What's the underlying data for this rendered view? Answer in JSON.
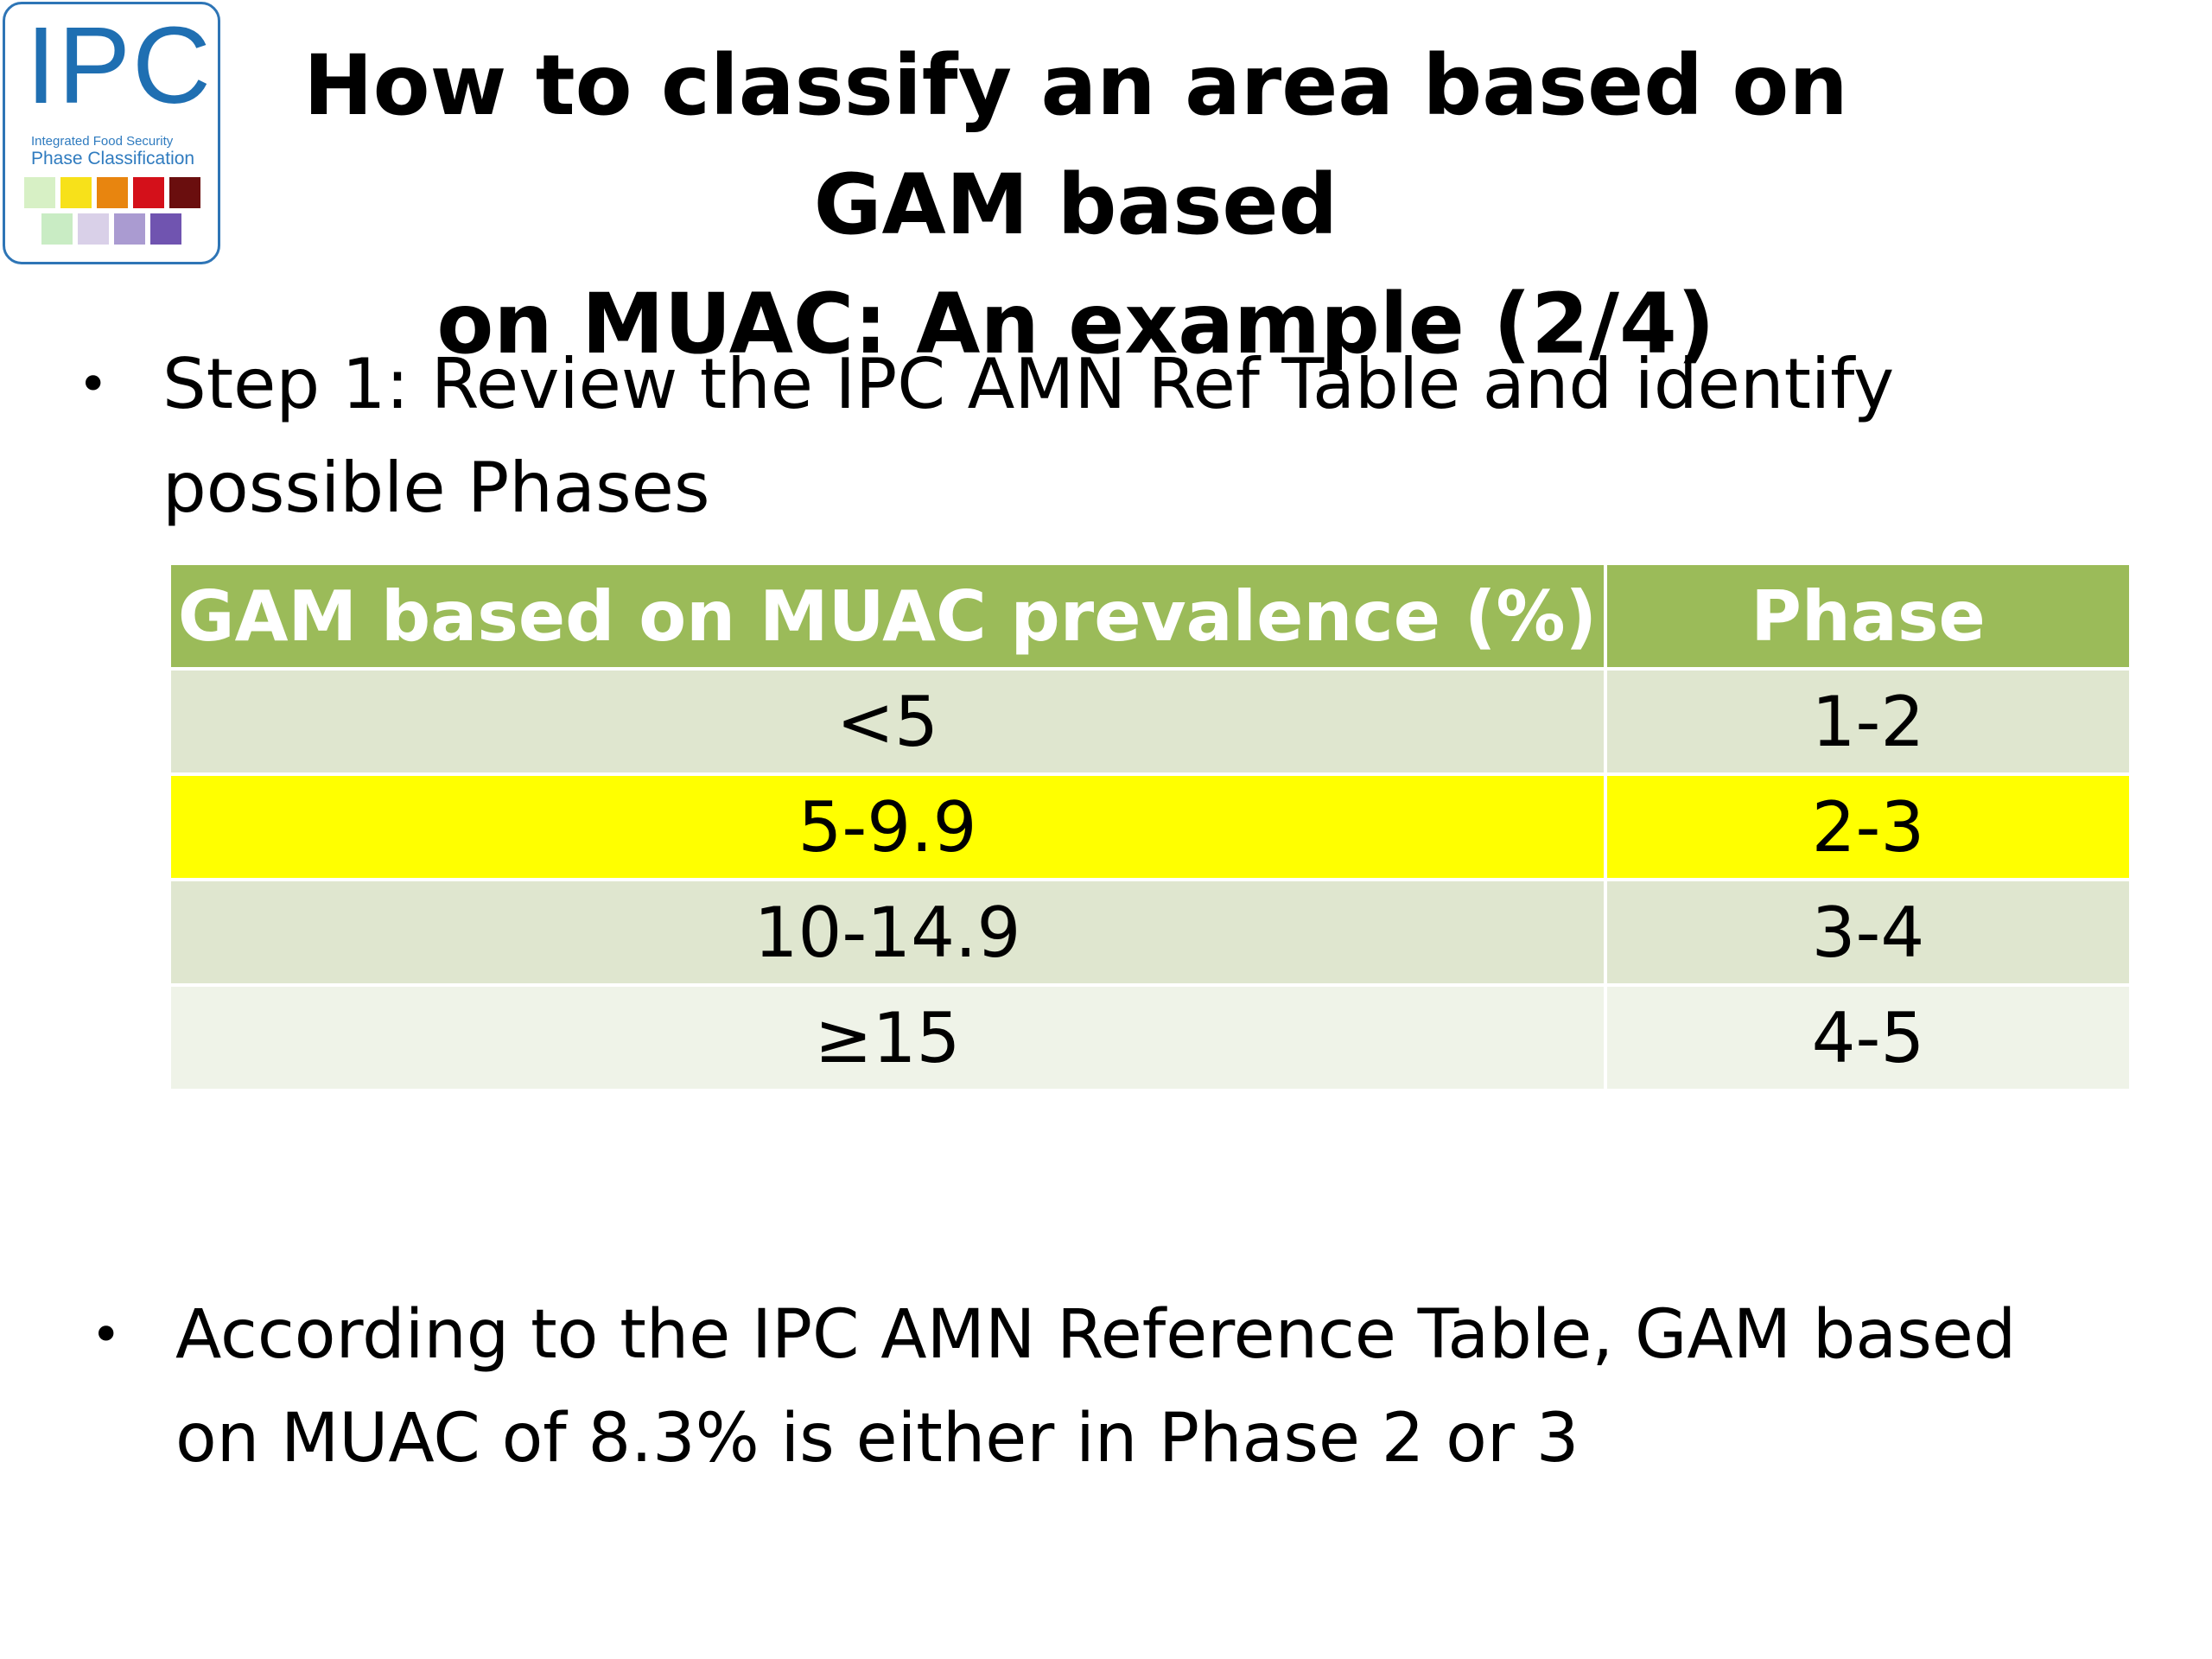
{
  "logo": {
    "text": "IPC",
    "subtitle_line1": "Integrated Food Security",
    "subtitle_line2": "Phase Classification",
    "swatch_colors_row1": [
      "#d7f0c5",
      "#f7e11a",
      "#e8850f",
      "#d4101a",
      "#6a0e0e"
    ],
    "swatch_colors_row2": [
      "#c9ecc4",
      "#d9d0e8",
      "#aa9bd1",
      "#7054b0"
    ]
  },
  "slide": {
    "title_line1": "How to classify an area based on GAM based",
    "title_line2": "on MUAC: An example (2/4)",
    "bullet_glyph": "•",
    "bullet1_line1": "Step 1: Review the IPC AMN Ref Table and identify",
    "bullet1_line2": "possible Phases",
    "bullet2_line1": "According to the IPC AMN Reference Table, GAM based",
    "bullet2_line2": "on MUAC of 8.3% is either in Phase 2 or 3"
  },
  "table": {
    "headers": [
      "GAM based on MUAC prevalence (%)",
      "Phase"
    ],
    "rows": [
      {
        "prevalence": "<5",
        "phase": "1-2",
        "highlighted": false
      },
      {
        "prevalence": "5-9.9",
        "phase": "2-3",
        "highlighted": true
      },
      {
        "prevalence": "10-14.9",
        "phase": "3-4",
        "highlighted": false
      },
      {
        "prevalence": "≥15",
        "phase": "4-5",
        "highlighted": false
      }
    ]
  },
  "colors": {
    "header_green": "#9bbb59",
    "highlight_yellow": "#ffff00",
    "row_light": "#eff3e8",
    "row_dark": "#dfe6cf",
    "logo_blue": "#1f6fb2"
  }
}
